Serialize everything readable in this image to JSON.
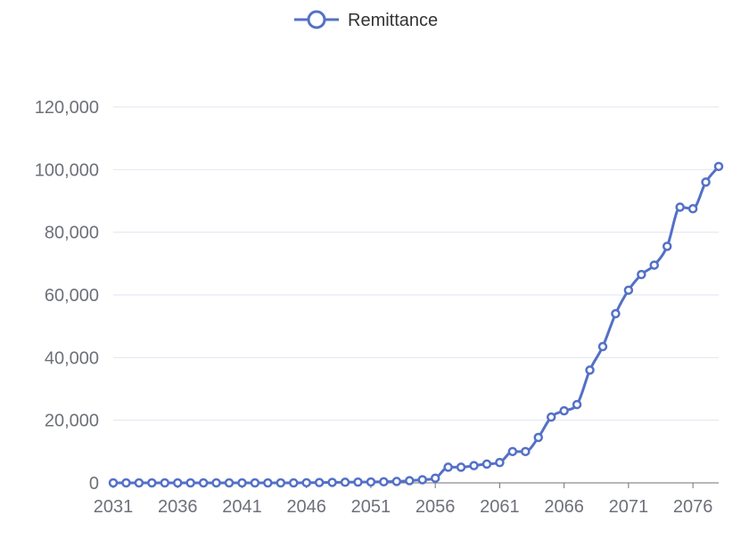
{
  "chart_data": {
    "type": "line",
    "title": "",
    "xlabel": "",
    "ylabel": "",
    "smooth": true,
    "grid": true,
    "legend_position": "top-center",
    "x": [
      2031,
      2032,
      2033,
      2034,
      2035,
      2036,
      2037,
      2038,
      2039,
      2040,
      2041,
      2042,
      2043,
      2044,
      2045,
      2046,
      2047,
      2048,
      2049,
      2050,
      2051,
      2052,
      2053,
      2054,
      2055,
      2056,
      2057,
      2058,
      2059,
      2060,
      2061,
      2062,
      2063,
      2064,
      2065,
      2066,
      2067,
      2068,
      2069,
      2070,
      2071,
      2072,
      2073,
      2074,
      2075,
      2076,
      2077,
      2078
    ],
    "x_tick_labels": [
      "2031",
      "2036",
      "2041",
      "2046",
      "2051",
      "2056",
      "2061",
      "2066",
      "2071",
      "2076"
    ],
    "ylim": [
      0,
      120000
    ],
    "y_ticks": [
      0,
      20000,
      40000,
      60000,
      80000,
      100000,
      120000
    ],
    "y_tick_labels": [
      "0",
      "20,000",
      "40,000",
      "60,000",
      "80,000",
      "100,000",
      "120,000"
    ],
    "series": [
      {
        "name": "Remittance",
        "color": "#5470c6",
        "values": [
          0,
          0,
          0,
          0,
          0,
          0,
          0,
          0,
          0,
          0,
          0,
          0,
          0,
          0,
          0,
          50,
          100,
          150,
          200,
          250,
          300,
          350,
          450,
          700,
          1000,
          1500,
          5000,
          5000,
          5500,
          6000,
          6500,
          10000,
          10000,
          14500,
          21000,
          23000,
          25000,
          36000,
          43500,
          54000,
          61500,
          66500,
          69500,
          75500,
          88000,
          87500,
          96000,
          101000
        ]
      }
    ]
  }
}
